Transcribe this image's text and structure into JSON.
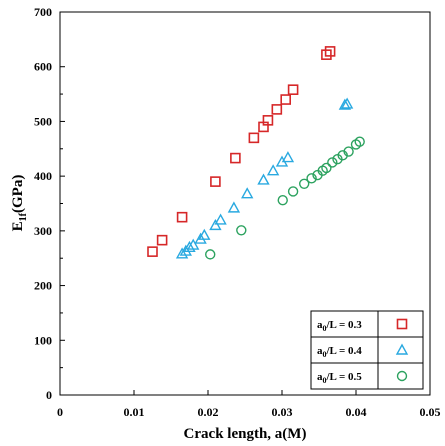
{
  "chart_data": {
    "type": "scatter",
    "xlabel": "Crack length, a(M)",
    "ylabel": "E₁f(GPa)",
    "ylabel_main": "E",
    "ylabel_sub": "1f",
    "ylabel_rest": "(GPa)",
    "xlim": [
      0,
      0.05
    ],
    "ylim": [
      0,
      700
    ],
    "xticks": [
      0,
      0.01,
      0.02,
      0.03,
      0.04,
      0.05
    ],
    "xtick_labels": [
      "0",
      "0.01",
      "0.02",
      "0.03",
      "0.04",
      "0.05"
    ],
    "yticks": [
      0,
      100,
      200,
      300,
      400,
      500,
      600,
      700
    ],
    "ytick_labels": [
      "0",
      "100",
      "200",
      "300",
      "400",
      "500",
      "600",
      "700"
    ],
    "grid": false,
    "legend_position": "bottom-right",
    "series": [
      {
        "name": "a0/L = 0.3",
        "legend_main": "a",
        "legend_sub": "0",
        "legend_rest": "/L = 0.3",
        "marker": "square",
        "color": "#d62728",
        "points": [
          [
            0.0125,
            262
          ],
          [
            0.0138,
            283
          ],
          [
            0.0165,
            325
          ],
          [
            0.021,
            390
          ],
          [
            0.0237,
            433
          ],
          [
            0.0262,
            470
          ],
          [
            0.0275,
            490
          ],
          [
            0.0281,
            502
          ],
          [
            0.0293,
            522
          ],
          [
            0.0305,
            540
          ],
          [
            0.0315,
            558
          ],
          [
            0.036,
            622
          ],
          [
            0.0365,
            628
          ]
        ]
      },
      {
        "name": "a0/L = 0.4",
        "legend_main": "a",
        "legend_sub": "0",
        "legend_rest": "/L = 0.4",
        "marker": "triangle",
        "color": "#29a9e0",
        "points": [
          [
            0.0165,
            258
          ],
          [
            0.017,
            263
          ],
          [
            0.0175,
            270
          ],
          [
            0.018,
            274
          ],
          [
            0.019,
            285
          ],
          [
            0.0195,
            292
          ],
          [
            0.021,
            310
          ],
          [
            0.0217,
            320
          ],
          [
            0.0235,
            342
          ],
          [
            0.0253,
            368
          ],
          [
            0.0275,
            393
          ],
          [
            0.0288,
            410
          ],
          [
            0.03,
            426
          ],
          [
            0.0308,
            434
          ],
          [
            0.0385,
            530
          ],
          [
            0.0388,
            532
          ]
        ]
      },
      {
        "name": "a0/L = 0.5",
        "legend_main": "a",
        "legend_sub": "0",
        "legend_rest": "/L = 0.5",
        "marker": "circle",
        "color": "#2ca25f",
        "points": [
          [
            0.0203,
            257
          ],
          [
            0.0245,
            301
          ],
          [
            0.0301,
            356
          ],
          [
            0.0315,
            372
          ],
          [
            0.033,
            386
          ],
          [
            0.034,
            396
          ],
          [
            0.0348,
            402
          ],
          [
            0.0355,
            410
          ],
          [
            0.036,
            415
          ],
          [
            0.0368,
            425
          ],
          [
            0.0375,
            431
          ],
          [
            0.0382,
            438
          ],
          [
            0.039,
            445
          ],
          [
            0.04,
            458
          ],
          [
            0.0405,
            463
          ]
        ]
      }
    ]
  }
}
